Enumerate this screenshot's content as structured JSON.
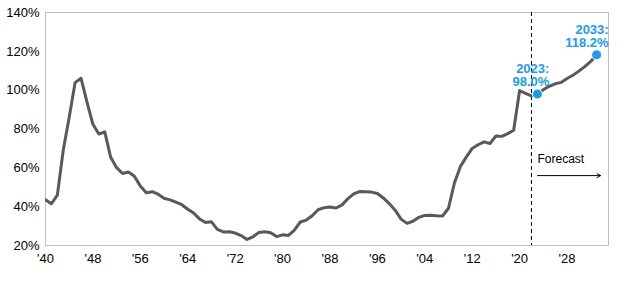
{
  "chart_data": {
    "type": "line",
    "color": "#595959",
    "grid": false,
    "x": [
      1940,
      1941,
      1942,
      1943,
      1944,
      1945,
      1946,
      1947,
      1948,
      1949,
      1950,
      1951,
      1952,
      1953,
      1954,
      1955,
      1956,
      1957,
      1958,
      1959,
      1960,
      1961,
      1962,
      1963,
      1964,
      1965,
      1966,
      1967,
      1968,
      1969,
      1970,
      1971,
      1972,
      1973,
      1974,
      1975,
      1976,
      1977,
      1978,
      1979,
      1980,
      1981,
      1982,
      1983,
      1984,
      1985,
      1986,
      1987,
      1988,
      1989,
      1990,
      1991,
      1992,
      1993,
      1994,
      1995,
      1996,
      1997,
      1998,
      1999,
      2000,
      2001,
      2002,
      2003,
      2004,
      2005,
      2006,
      2007,
      2008,
      2009,
      2010,
      2011,
      2012,
      2013,
      2014,
      2015,
      2016,
      2017,
      2018,
      2019,
      2020,
      2021,
      2022,
      2023,
      2024,
      2025,
      2026,
      2027,
      2028,
      2029,
      2030,
      2031,
      2032,
      2033
    ],
    "values": [
      43.6,
      41.5,
      45.9,
      69.2,
      86.1,
      103.9,
      106.1,
      93.9,
      82.4,
      77.4,
      78.5,
      65.4,
      60.1,
      57.1,
      57.9,
      55.7,
      50.6,
      47.2,
      47.7,
      46.4,
      44.3,
      43.5,
      42.3,
      41.0,
      38.7,
      36.7,
      33.7,
      31.8,
      32.2,
      28.3,
      27.0,
      27.1,
      26.4,
      25.1,
      23.1,
      24.5,
      26.7,
      27.1,
      26.6,
      24.6,
      25.5,
      25.2,
      27.9,
      32.1,
      33.1,
      35.3,
      38.4,
      39.5,
      39.8,
      39.3,
      40.8,
      44.0,
      46.6,
      47.8,
      47.7,
      47.5,
      46.8,
      44.5,
      41.6,
      38.2,
      33.6,
      31.4,
      32.5,
      34.5,
      35.5,
      35.6,
      35.3,
      35.2,
      39.2,
      52.2,
      60.6,
      65.5,
      70.0,
      71.9,
      73.4,
      72.5,
      76.4,
      76.2,
      77.6,
      79.4,
      99.8,
      98.4,
      97.0,
      98.0,
      100.2,
      102.0,
      103.3,
      104.0,
      106.0,
      107.7,
      109.8,
      112.1,
      114.8,
      118.2
    ],
    "xlim": [
      1940,
      2035
    ],
    "xticks": [
      {
        "value": 1940,
        "label": "'40"
      },
      {
        "value": 1948,
        "label": "'48"
      },
      {
        "value": 1956,
        "label": "'56"
      },
      {
        "value": 1964,
        "label": "'64"
      },
      {
        "value": 1972,
        "label": "'72"
      },
      {
        "value": 1980,
        "label": "'80"
      },
      {
        "value": 1988,
        "label": "'88"
      },
      {
        "value": 1996,
        "label": "'96"
      },
      {
        "value": 2004,
        "label": "'04"
      },
      {
        "value": 2012,
        "label": "'12"
      },
      {
        "value": 2020,
        "label": "'20"
      },
      {
        "value": 2028,
        "label": "'28"
      }
    ],
    "ylim": [
      20,
      140
    ],
    "yticks": [
      {
        "value": 20,
        "label": "20%"
      },
      {
        "value": 40,
        "label": "40%"
      },
      {
        "value": 60,
        "label": "60%"
      },
      {
        "value": 80,
        "label": "80%"
      },
      {
        "value": 100,
        "label": "100%"
      },
      {
        "value": 120,
        "label": "120%"
      },
      {
        "value": 140,
        "label": "140%"
      }
    ],
    "forecast": {
      "x": 2022,
      "text": "Forecast",
      "line_style": "dashed"
    },
    "annotations": [
      {
        "x": 2023,
        "y": 98.0,
        "text": [
          "2023:",
          "98.0%"
        ],
        "color": "#1e9be9",
        "marker": "circle"
      },
      {
        "x": 2033,
        "y": 118.2,
        "text": [
          "2033:",
          "118.2%"
        ],
        "color": "#1e9be9",
        "marker": "circle"
      }
    ]
  }
}
